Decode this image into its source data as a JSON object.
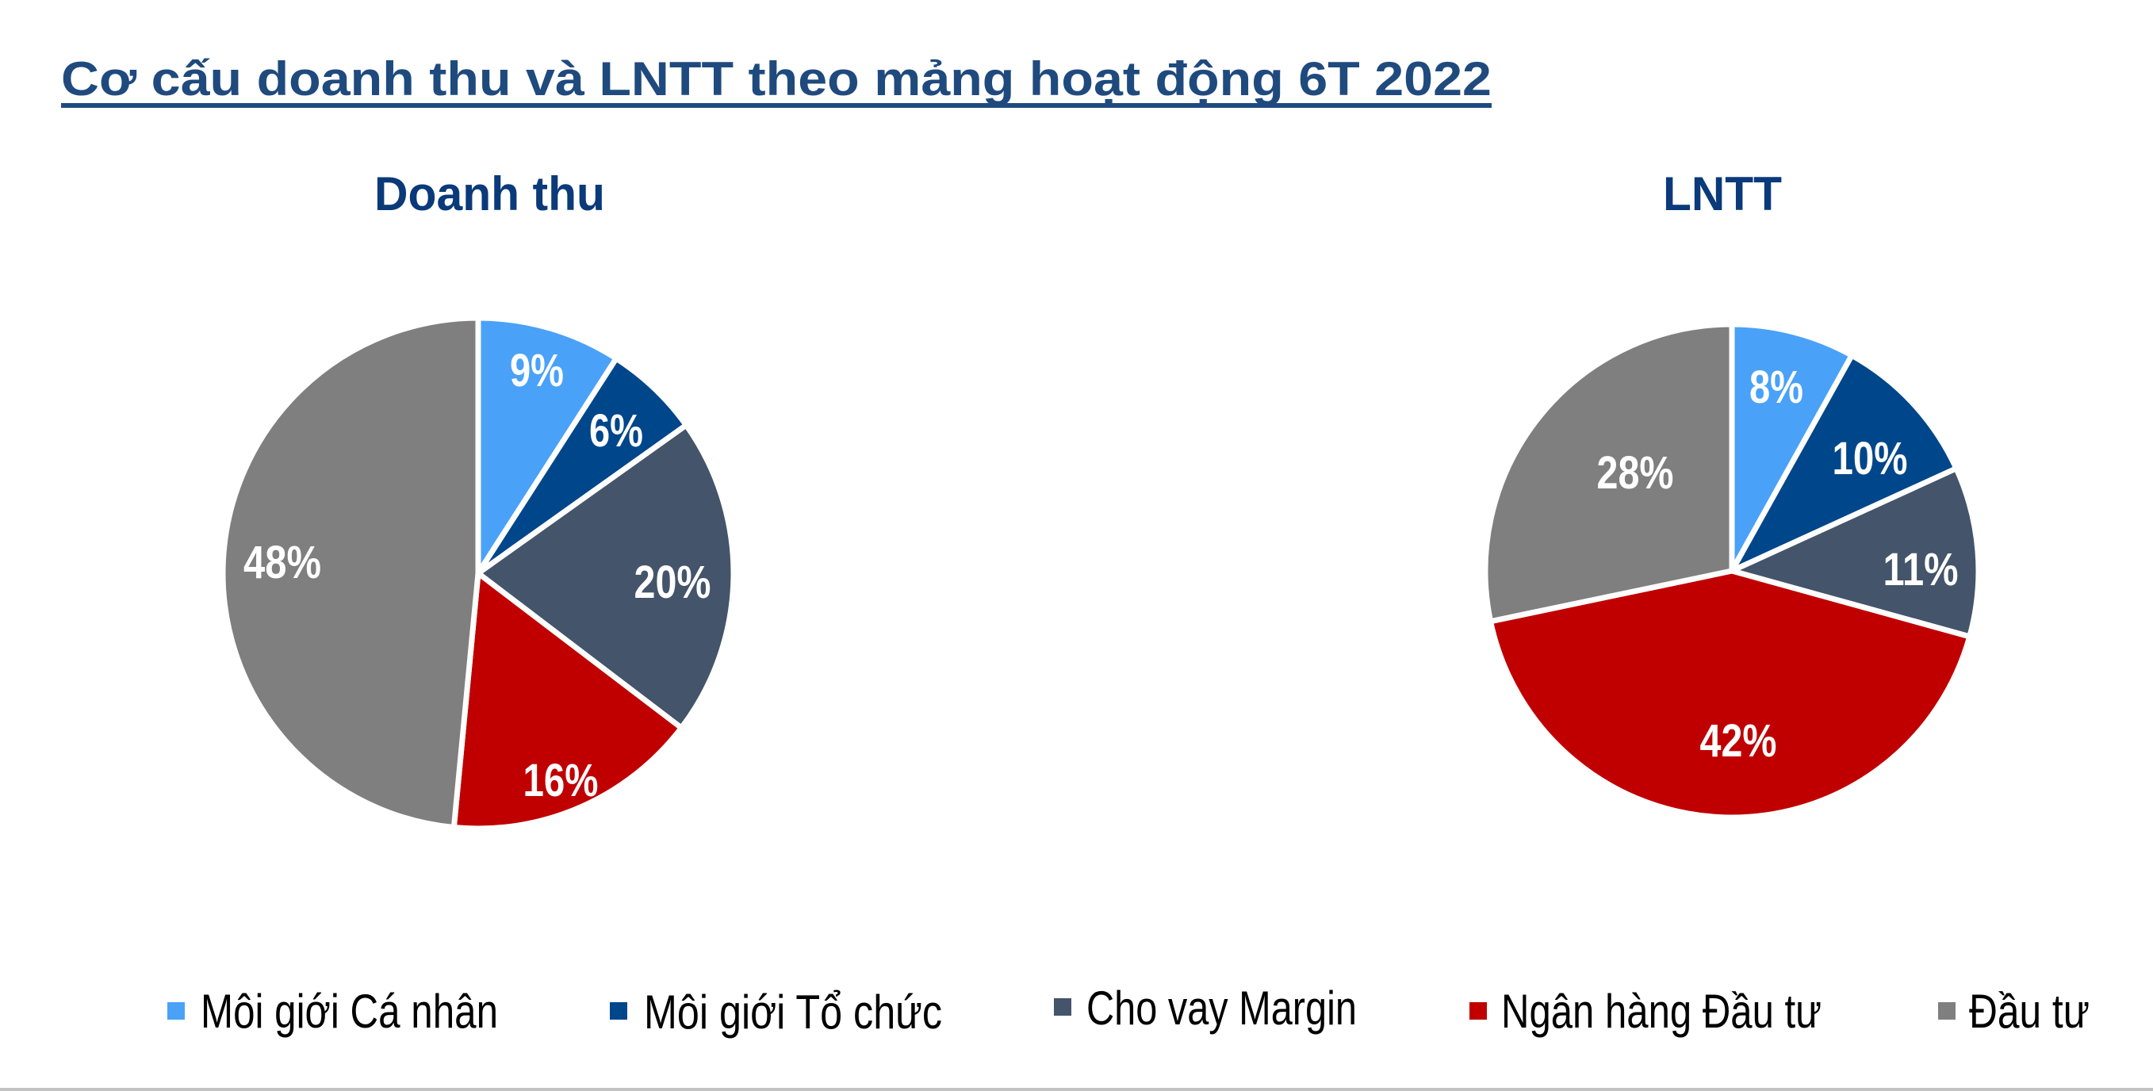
{
  "header": {
    "title": "Cơ cấu doanh thu và LNTT theo mảng hoạt động 6T 2022",
    "title_color": "#1f4a7e"
  },
  "charts": {
    "revenue": {
      "subtitle": "Doanh thu"
    },
    "profit": {
      "subtitle": "LNTT"
    },
    "subtitle_color": "#0a3a7a"
  },
  "legend": {
    "items": [
      {
        "label": "Môi giới Cá nhân",
        "color": "#4aa1f8"
      },
      {
        "label": "Môi giới Tổ chức",
        "color": "#00468b"
      },
      {
        "label": "Cho vay Margin",
        "color": "#44546a"
      },
      {
        "label": "Ngân hàng Đầu tư",
        "color": "#c00000"
      },
      {
        "label": "Đầu tư",
        "color": "#7f7f7f"
      }
    ]
  },
  "chart_data": [
    {
      "type": "pie",
      "title": "Doanh thu",
      "categories": [
        "Môi giới Cá nhân",
        "Môi giới Tổ chức",
        "Cho vay Margin",
        "Ngân hàng Đầu tư",
        "Đầu tư"
      ],
      "values": [
        9,
        6,
        20,
        16,
        48
      ],
      "labels": [
        "9%",
        "6%",
        "20%",
        "16%",
        "48%"
      ],
      "colors": [
        "#4aa1f8",
        "#00468b",
        "#44546a",
        "#c00000",
        "#7f7f7f"
      ],
      "start_angle": "12 o'clock, clockwise",
      "legend_position": "bottom"
    },
    {
      "type": "pie",
      "title": "LNTT",
      "categories": [
        "Môi giới Cá nhân",
        "Môi giới Tổ chức",
        "Cho vay Margin",
        "Ngân hàng Đầu tư",
        "Đầu tư"
      ],
      "values": [
        8,
        10,
        11,
        42,
        28
      ],
      "labels": [
        "8%",
        "10%",
        "11%",
        "42%",
        "28%"
      ],
      "colors": [
        "#4aa1f8",
        "#00468b",
        "#44546a",
        "#c00000",
        "#7f7f7f"
      ],
      "start_angle": "12 o'clock, clockwise",
      "legend_position": "bottom"
    }
  ]
}
